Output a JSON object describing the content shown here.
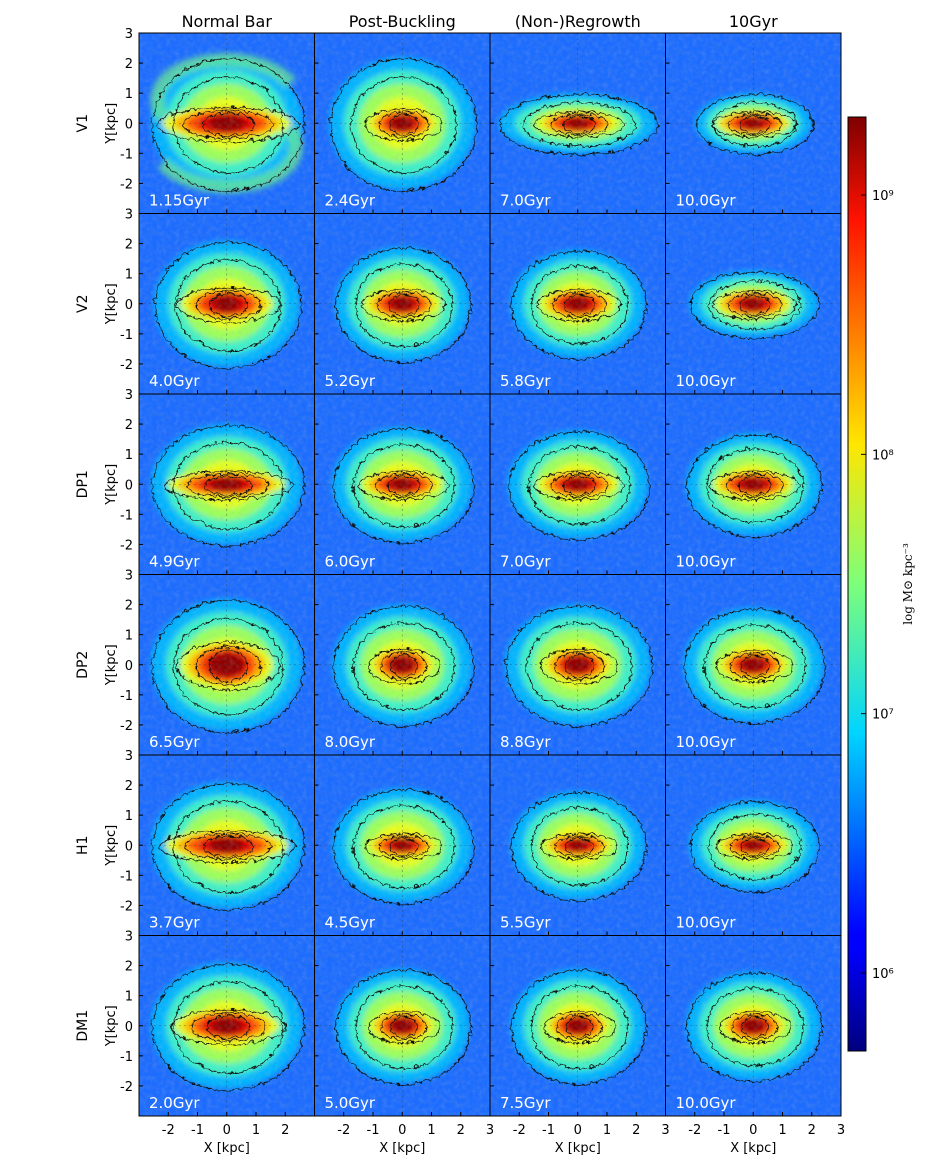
{
  "figure": {
    "column_titles": [
      "Normal Bar",
      "Post-Buckling",
      "(Non-)Regrowth",
      "10Gyr"
    ],
    "row_labels": [
      "V1",
      "V2",
      "DP1",
      "DP2",
      "H1",
      "DM1"
    ],
    "y_axis_label": "Y[kpc]",
    "x_axis_label": "X [kpc]",
    "colorbar_label": "log M⊙ kpc⁻³",
    "colorbar_ticks": [
      "10⁹",
      "10⁸",
      "10⁷",
      "10⁶"
    ],
    "x_tick_labels": [
      "-2",
      "-1",
      "0",
      "1",
      "2",
      "3"
    ],
    "x_tick_labels_first_panel": [
      "-2",
      "-1",
      "0",
      "1",
      "2"
    ],
    "y_tick_labels": [
      "3",
      "2",
      "1",
      "0",
      "-1",
      "-2"
    ]
  },
  "chart_data": {
    "type": "heatmap",
    "description_fields": {
      "columns": [
        "Normal Bar",
        "Post-Buckling",
        "(Non-)Regrowth",
        "10Gyr"
      ],
      "rows": [
        "V1",
        "V2",
        "DP1",
        "DP2",
        "H1",
        "DM1"
      ]
    },
    "x_range": [
      -3,
      3
    ],
    "y_range": [
      -3,
      3
    ],
    "xlabel": "X [kpc]",
    "ylabel": "Y[kpc]",
    "colorbar": {
      "label": "log M⊙ kpc⁻³",
      "scale": "log",
      "range": [
        500000,
        2000000000
      ],
      "ticks": [
        1000000000,
        100000000,
        10000000,
        1000000
      ],
      "colormap": "jet"
    },
    "panels": [
      {
        "row": "V1",
        "column": "Normal Bar",
        "time": "1.15Gyr",
        "bar_half_length": 2.2,
        "bar_half_width": 0.55,
        "disk_rx": 2.6,
        "disk_ry": 2.2,
        "spiral": true
      },
      {
        "row": "V1",
        "column": "Post-Buckling",
        "time": "2.4Gyr",
        "bar_half_length": 1.2,
        "bar_half_width": 0.5,
        "disk_rx": 2.5,
        "disk_ry": 2.2,
        "spiral": false
      },
      {
        "row": "V1",
        "column": "(Non-)Regrowth",
        "time": "7.0Gyr",
        "bar_half_length": 1.4,
        "bar_half_width": 0.4,
        "disk_rx": 2.7,
        "disk_ry": 1.0,
        "spiral": false
      },
      {
        "row": "V1",
        "column": "10Gyr",
        "time": "10.0Gyr",
        "bar_half_length": 1.3,
        "bar_half_width": 0.4,
        "disk_rx": 2.0,
        "disk_ry": 1.0,
        "spiral": false
      },
      {
        "row": "V2",
        "column": "Normal Bar",
        "time": "4.0Gyr",
        "bar_half_length": 1.6,
        "bar_half_width": 0.55,
        "disk_rx": 2.5,
        "disk_ry": 2.1,
        "spiral": false
      },
      {
        "row": "V2",
        "column": "Post-Buckling",
        "time": "5.2Gyr",
        "bar_half_length": 1.3,
        "bar_half_width": 0.5,
        "disk_rx": 2.3,
        "disk_ry": 1.9,
        "spiral": false
      },
      {
        "row": "V2",
        "column": "(Non-)Regrowth",
        "time": "5.8Gyr",
        "bar_half_length": 1.3,
        "bar_half_width": 0.5,
        "disk_rx": 2.3,
        "disk_ry": 1.8,
        "spiral": false
      },
      {
        "row": "V2",
        "column": "10Gyr",
        "time": "10.0Gyr",
        "bar_half_length": 1.3,
        "bar_half_width": 0.45,
        "disk_rx": 2.2,
        "disk_ry": 1.1,
        "spiral": false
      },
      {
        "row": "DP1",
        "column": "Normal Bar",
        "time": "4.9Gyr",
        "bar_half_length": 2.0,
        "bar_half_width": 0.45,
        "disk_rx": 2.6,
        "disk_ry": 2.0,
        "spiral": false
      },
      {
        "row": "DP1",
        "column": "Post-Buckling",
        "time": "6.0Gyr",
        "bar_half_length": 1.4,
        "bar_half_width": 0.45,
        "disk_rx": 2.4,
        "disk_ry": 1.9,
        "spiral": false
      },
      {
        "row": "DP1",
        "column": "(Non-)Regrowth",
        "time": "7.0Gyr",
        "bar_half_length": 1.4,
        "bar_half_width": 0.45,
        "disk_rx": 2.4,
        "disk_ry": 1.8,
        "spiral": false
      },
      {
        "row": "DP1",
        "column": "10Gyr",
        "time": "10.0Gyr",
        "bar_half_length": 1.4,
        "bar_half_width": 0.45,
        "disk_rx": 2.3,
        "disk_ry": 1.7,
        "spiral": false
      },
      {
        "row": "DP2",
        "column": "Normal Bar",
        "time": "6.5Gyr",
        "bar_half_length": 1.6,
        "bar_half_width": 0.75,
        "disk_rx": 2.6,
        "disk_ry": 2.2,
        "spiral": false
      },
      {
        "row": "DP2",
        "column": "Post-Buckling",
        "time": "8.0Gyr",
        "bar_half_length": 1.1,
        "bar_half_width": 0.55,
        "disk_rx": 2.4,
        "disk_ry": 2.0,
        "spiral": false
      },
      {
        "row": "DP2",
        "column": "(Non-)Regrowth",
        "time": "8.8Gyr",
        "bar_half_length": 1.2,
        "bar_half_width": 0.55,
        "disk_rx": 2.5,
        "disk_ry": 2.0,
        "spiral": false
      },
      {
        "row": "DP2",
        "column": "10Gyr",
        "time": "10.0Gyr",
        "bar_half_length": 1.2,
        "bar_half_width": 0.5,
        "disk_rx": 2.4,
        "disk_ry": 1.9,
        "spiral": false
      },
      {
        "row": "H1",
        "column": "Normal Bar",
        "time": "3.7Gyr",
        "bar_half_length": 2.1,
        "bar_half_width": 0.5,
        "disk_rx": 2.6,
        "disk_ry": 2.1,
        "spiral": false
      },
      {
        "row": "H1",
        "column": "Post-Buckling",
        "time": "4.5Gyr",
        "bar_half_length": 1.2,
        "bar_half_width": 0.4,
        "disk_rx": 2.4,
        "disk_ry": 1.9,
        "spiral": false
      },
      {
        "row": "H1",
        "column": "(Non-)Regrowth",
        "time": "5.5Gyr",
        "bar_half_length": 1.2,
        "bar_half_width": 0.4,
        "disk_rx": 2.3,
        "disk_ry": 1.8,
        "spiral": false
      },
      {
        "row": "H1",
        "column": "10Gyr",
        "time": "10.0Gyr",
        "bar_half_length": 1.2,
        "bar_half_width": 0.4,
        "disk_rx": 2.2,
        "disk_ry": 1.5,
        "spiral": false
      },
      {
        "row": "DM1",
        "column": "Normal Bar",
        "time": "2.0Gyr",
        "bar_half_length": 1.8,
        "bar_half_width": 0.55,
        "disk_rx": 2.6,
        "disk_ry": 2.1,
        "spiral": false
      },
      {
        "row": "DM1",
        "column": "Post-Buckling",
        "time": "5.0Gyr",
        "bar_half_length": 1.1,
        "bar_half_width": 0.5,
        "disk_rx": 2.3,
        "disk_ry": 1.9,
        "spiral": false
      },
      {
        "row": "DM1",
        "column": "(Non-)Regrowth",
        "time": "7.5Gyr",
        "bar_half_length": 1.1,
        "bar_half_width": 0.5,
        "disk_rx": 2.3,
        "disk_ry": 1.9,
        "spiral": false
      },
      {
        "row": "DM1",
        "column": "10Gyr",
        "time": "10.0Gyr",
        "bar_half_length": 1.1,
        "bar_half_width": 0.5,
        "disk_rx": 2.3,
        "disk_ry": 1.8,
        "spiral": false
      }
    ]
  }
}
